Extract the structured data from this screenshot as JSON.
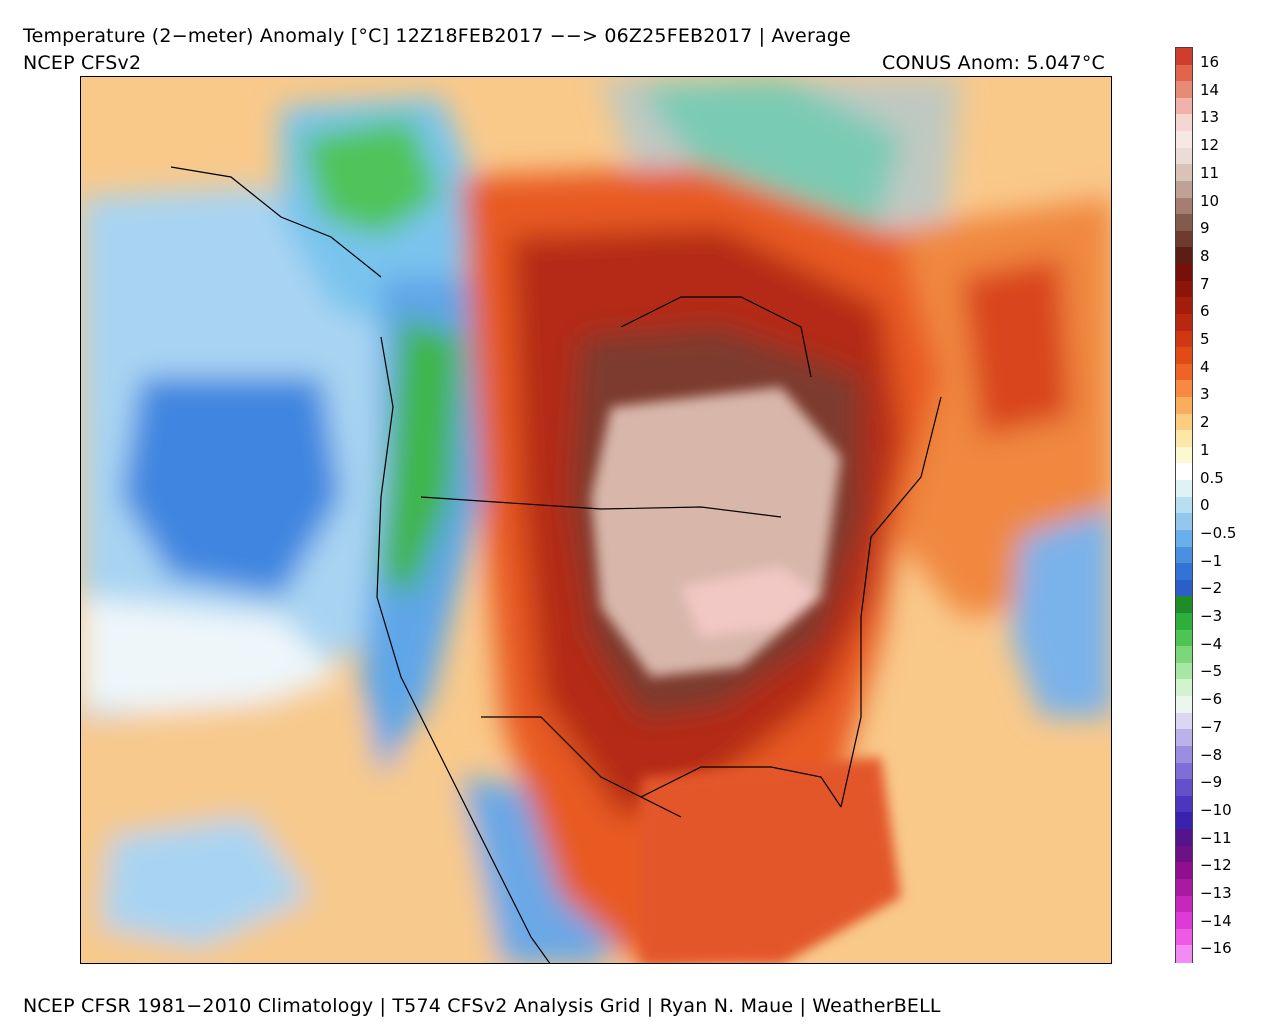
{
  "header": {
    "title": "Temperature (2−meter) Anomaly  [°C] 12Z18FEB2017 −−> 06Z25FEB2017 | Average",
    "subtitle": "NCEP CFSv2",
    "conus_anomaly": "CONUS Anom: 5.047°C"
  },
  "footer": {
    "credits": "NCEP CFSR 1981−2010 Climatology | T574 CFSv2 Analysis Grid | Ryan N. Maue | WeatherBELL"
  },
  "colors": {
    "ocean_neutral": "#f7d9a0",
    "cold_blue": "#4a8fe0",
    "deep_cold_blue": "#2e6ed6",
    "warm_orange": "#f08a4c",
    "hot_red": "#d9381e",
    "very_hot_brown": "#8c3a28",
    "extreme_tan": "#d8b3a8"
  },
  "colorbar": {
    "labels": [
      "16",
      "14",
      "13",
      "12",
      "11",
      "10",
      "9",
      "8",
      "7",
      "6",
      "5",
      "4",
      "3",
      "2",
      "1",
      "0.5",
      "0",
      "−0.5",
      "−1",
      "−2",
      "−3",
      "−4",
      "−5",
      "−6",
      "−7",
      "−8",
      "−9",
      "−10",
      "−11",
      "−12",
      "−13",
      "−14",
      "−16"
    ],
    "colors": [
      "#d23c2c",
      "#e1644c",
      "#e88a78",
      "#f0b2aa",
      "#f5d6d2",
      "#f7e8e4",
      "#ecdcd6",
      "#d9c2b8",
      "#c0a196",
      "#a47e73",
      "#855a4e",
      "#6e3b30",
      "#5c1e14",
      "#780f08",
      "#8c1408",
      "#a41c0c",
      "#b82810",
      "#ce3812",
      "#e24a16",
      "#ef6424",
      "#f58a40",
      "#f9ae5e",
      "#fccd80",
      "#fde6a8",
      "#fef8d0",
      "#ffffff",
      "#def2f8",
      "#b8def2",
      "#92c8ee",
      "#6aaeea",
      "#4a90e2",
      "#3373d6",
      "#2a5ec8",
      "#1e8c28",
      "#2eae3a",
      "#4ec454",
      "#7cd67a",
      "#a8e6a4",
      "#d2f2d0",
      "#ecf6ee",
      "#dcd6f2",
      "#bcb2ea",
      "#9a8ee0",
      "#7e6ed6",
      "#6450ca",
      "#4c36be",
      "#3a22b0",
      "#56148c",
      "#6e1086",
      "#8e1090",
      "#a81aa2",
      "#c628be",
      "#de3ad6",
      "#ec5ae6",
      "#f58af2"
    ]
  }
}
